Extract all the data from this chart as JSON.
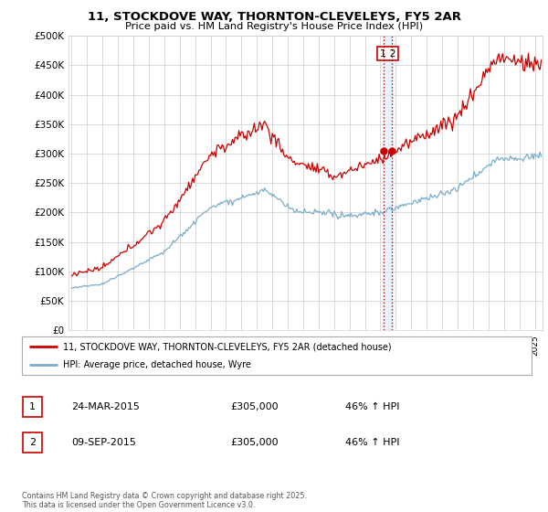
{
  "title1": "11, STOCKDOVE WAY, THORNTON-CLEVELEYS, FY5 2AR",
  "title2": "Price paid vs. HM Land Registry's House Price Index (HPI)",
  "legend_line1": "11, STOCKDOVE WAY, THORNTON-CLEVELEYS, FY5 2AR (detached house)",
  "legend_line2": "HPI: Average price, detached house, Wyre",
  "footer": "Contains HM Land Registry data © Crown copyright and database right 2025.\nThis data is licensed under the Open Government Licence v3.0.",
  "transaction1_date": "24-MAR-2015",
  "transaction1_price": "£305,000",
  "transaction1_hpi": "46% ↑ HPI",
  "transaction2_date": "09-SEP-2015",
  "transaction2_price": "£305,000",
  "transaction2_hpi": "46% ↑ HPI",
  "t1_x": 2015.22,
  "t2_x": 2015.72,
  "t1_y": 305000,
  "t2_y": 305000,
  "ylim": [
    0,
    500000
  ],
  "xlim_start": 1994.8,
  "xlim_end": 2025.5,
  "red_color": "#cc0000",
  "blue_color": "#7aadcc",
  "vline_color": "#cc0000",
  "grid_color": "#cccccc",
  "shade_color": "#ddeeff"
}
